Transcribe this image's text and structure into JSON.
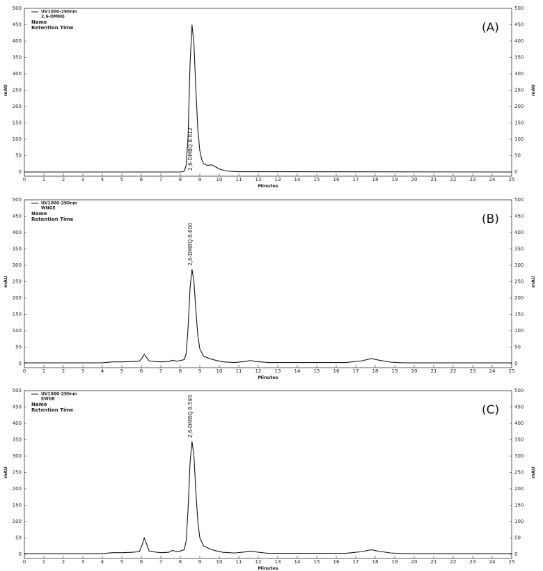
{
  "chart_data": [
    {
      "type": "line",
      "panel_label": "(A)",
      "xlabel": "Minutes",
      "ylabel": "mAU",
      "legend_labels": [
        "Name",
        "Retention Time"
      ],
      "annotation": "2,6-DMBQ  8.612",
      "xlim": [
        0,
        25
      ],
      "xticks": [
        0,
        1,
        2,
        3,
        4,
        5,
        6,
        7,
        8,
        9,
        10,
        11,
        12,
        13,
        14,
        15,
        16,
        17,
        18,
        19,
        20,
        21,
        22,
        23,
        24,
        25
      ],
      "ylim": [
        0,
        500
      ],
      "yticks": [
        0,
        50,
        100,
        150,
        200,
        250,
        300,
        350,
        400,
        450,
        500
      ],
      "x": [
        0,
        8.0,
        8.2,
        8.3,
        8.4,
        8.5,
        8.6,
        8.7,
        8.8,
        8.9,
        9.0,
        9.1,
        9.2,
        9.4,
        9.6,
        9.8,
        10.0,
        10.3,
        10.6,
        11,
        25
      ],
      "series": [
        {
          "name": "UV1000-290nm",
          "sample": "2,6-DMBQ",
          "color": "#111111",
          "values": [
            0,
            0,
            2,
            20,
            110,
            330,
            450,
            390,
            250,
            130,
            65,
            38,
            25,
            20,
            22,
            16,
            9,
            4,
            2,
            1,
            0
          ]
        }
      ]
    },
    {
      "type": "line",
      "panel_label": "(B)",
      "xlabel": "Minutes",
      "ylabel": "mAU",
      "legend_labels": [
        "Name",
        "Retention Time"
      ],
      "annotation": "2,6-DMBQ  8.600",
      "xlim": [
        0,
        25
      ],
      "xticks": [
        0,
        1,
        2,
        3,
        4,
        5,
        6,
        7,
        8,
        9,
        10,
        11,
        12,
        13,
        14,
        15,
        16,
        17,
        18,
        19,
        20,
        21,
        22,
        23,
        24,
        25
      ],
      "ylim": [
        0,
        500
      ],
      "yticks": [
        0,
        50,
        100,
        150,
        200,
        250,
        300,
        350,
        400,
        450,
        500
      ],
      "x": [
        0,
        4,
        4.5,
        5,
        5.5,
        5.9,
        6.05,
        6.15,
        6.25,
        6.4,
        6.7,
        7.0,
        7.4,
        7.6,
        7.8,
        8.0,
        8.2,
        8.3,
        8.4,
        8.5,
        8.6,
        8.7,
        8.8,
        8.9,
        9.0,
        9.2,
        9.5,
        9.8,
        10.2,
        10.8,
        11.3,
        11.6,
        11.9,
        12.5,
        13,
        16.5,
        17.3,
        17.8,
        18.2,
        18.8,
        19.5,
        25
      ],
      "series": [
        {
          "name": "UV1000-290nm",
          "sample": "WNGE",
          "color": "#111111",
          "values": [
            2,
            2,
            5,
            5,
            6,
            7,
            18,
            28,
            20,
            8,
            6,
            5,
            6,
            10,
            7,
            9,
            12,
            30,
            110,
            230,
            288,
            250,
            160,
            85,
            45,
            22,
            15,
            10,
            5,
            3,
            6,
            9,
            6,
            3,
            3,
            3,
            8,
            15,
            10,
            4,
            2,
            2
          ]
        }
      ]
    },
    {
      "type": "line",
      "panel_label": "(C)",
      "xlabel": "Minutes",
      "ylabel": "mAU",
      "legend_labels": [
        "Name",
        "Retention Time"
      ],
      "annotation": "2,6-DMBQ  8.593",
      "xlim": [
        0,
        25
      ],
      "xticks": [
        0,
        1,
        2,
        3,
        4,
        5,
        6,
        7,
        8,
        9,
        10,
        11,
        12,
        13,
        14,
        15,
        16,
        17,
        18,
        19,
        20,
        21,
        22,
        23,
        24,
        25
      ],
      "ylim": [
        0,
        500
      ],
      "yticks": [
        0,
        50,
        100,
        150,
        200,
        250,
        300,
        350,
        400,
        450,
        500
      ],
      "x": [
        0,
        4,
        4.5,
        5,
        5.5,
        5.9,
        6.05,
        6.15,
        6.25,
        6.4,
        6.7,
        7.0,
        7.4,
        7.6,
        7.8,
        8.0,
        8.2,
        8.3,
        8.4,
        8.5,
        8.6,
        8.7,
        8.8,
        8.9,
        9.0,
        9.2,
        9.5,
        9.8,
        10.2,
        10.8,
        11.3,
        11.6,
        11.9,
        12.5,
        13,
        16.5,
        17.3,
        17.8,
        18.2,
        18.8,
        19.5,
        25
      ],
      "series": [
        {
          "name": "UV1000-290nm",
          "sample": "EWGE",
          "color": "#111111",
          "values": [
            2,
            2,
            5,
            5,
            6,
            8,
            30,
            50,
            35,
            10,
            7,
            5,
            6,
            12,
            8,
            10,
            14,
            40,
            140,
            280,
            345,
            300,
            190,
            100,
            50,
            25,
            17,
            11,
            6,
            4,
            7,
            10,
            7,
            3,
            3,
            3,
            8,
            14,
            9,
            4,
            2,
            2
          ]
        }
      ]
    }
  ]
}
